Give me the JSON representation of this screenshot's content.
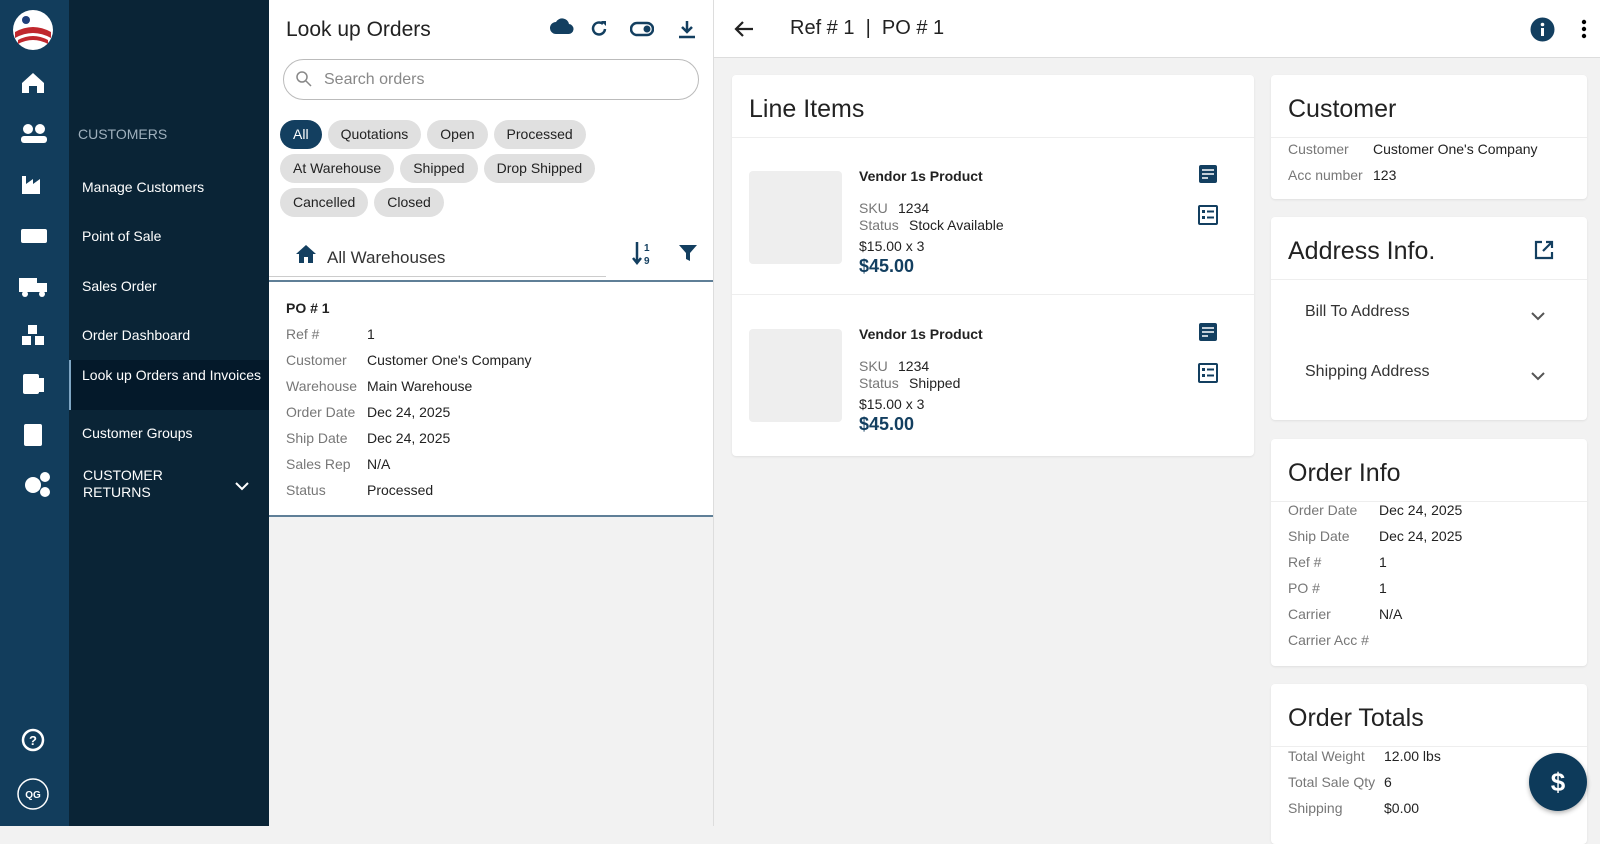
{
  "app": {
    "user_initials": "QG"
  },
  "menu": {
    "section": "CUSTOMERS",
    "items": [
      "Manage Customers",
      "Point of Sale",
      "Sales Order",
      "Order Dashboard",
      "Look up Orders and Invoices",
      "Customer Groups",
      "CUSTOMER RETURNS"
    ]
  },
  "orders": {
    "title": "Look up Orders",
    "search_placeholder": "Search orders",
    "filters": [
      "All",
      "Quotations",
      "Open",
      "Processed",
      "At Warehouse",
      "Shipped",
      "Drop Shipped",
      "Cancelled",
      "Closed"
    ],
    "warehouse": "All Warehouses",
    "list": [
      {
        "title": "PO # 1",
        "fields": [
          {
            "label": "Ref #",
            "value": "1"
          },
          {
            "label": "Customer",
            "value": "Customer One's Company"
          },
          {
            "label": "Warehouse",
            "value": "Main Warehouse"
          },
          {
            "label": "Order Date",
            "value": "Dec 24, 2025"
          },
          {
            "label": "Ship Date",
            "value": "Dec 24, 2025"
          },
          {
            "label": "Sales Rep",
            "value": "N/A"
          },
          {
            "label": "Status",
            "value": "Processed"
          }
        ]
      }
    ]
  },
  "detail": {
    "heading": "Ref # 1  |  PO # 1",
    "line_items": {
      "title": "Line Items",
      "items": [
        {
          "name": "Vendor 1s Product",
          "sku_label": "SKU",
          "sku": "1234",
          "status_label": "Status",
          "status": "Stock Available",
          "unit": "$15.00 x 3",
          "total": "$45.00"
        },
        {
          "name": "Vendor 1s Product",
          "sku_label": "SKU",
          "sku": "1234",
          "status_label": "Status",
          "status": "Shipped",
          "unit": "$15.00 x 3",
          "total": "$45.00"
        }
      ]
    },
    "customer": {
      "title": "Customer",
      "fields": [
        {
          "label": "Customer",
          "value": "Customer One's Company"
        },
        {
          "label": "Acc number",
          "value": "123"
        }
      ]
    },
    "address": {
      "title": "Address Info.",
      "sections": [
        "Bill To Address",
        "Shipping Address"
      ]
    },
    "order_info": {
      "title": "Order Info",
      "fields": [
        {
          "label": "Order Date",
          "value": "Dec 24, 2025"
        },
        {
          "label": "Ship Date",
          "value": "Dec 24, 2025"
        },
        {
          "label": "Ref #",
          "value": "1"
        },
        {
          "label": "PO #",
          "value": "1"
        },
        {
          "label": "Carrier",
          "value": "N/A"
        },
        {
          "label": "Carrier Acc #"
        }
      ]
    },
    "order_totals": {
      "title": "Order Totals",
      "fields": [
        {
          "label": "Total Weight",
          "value": "12.00 lbs"
        },
        {
          "label": "Total Sale Qty",
          "value": "6"
        },
        {
          "label": "Shipping",
          "value": "$0.00"
        }
      ]
    }
  }
}
